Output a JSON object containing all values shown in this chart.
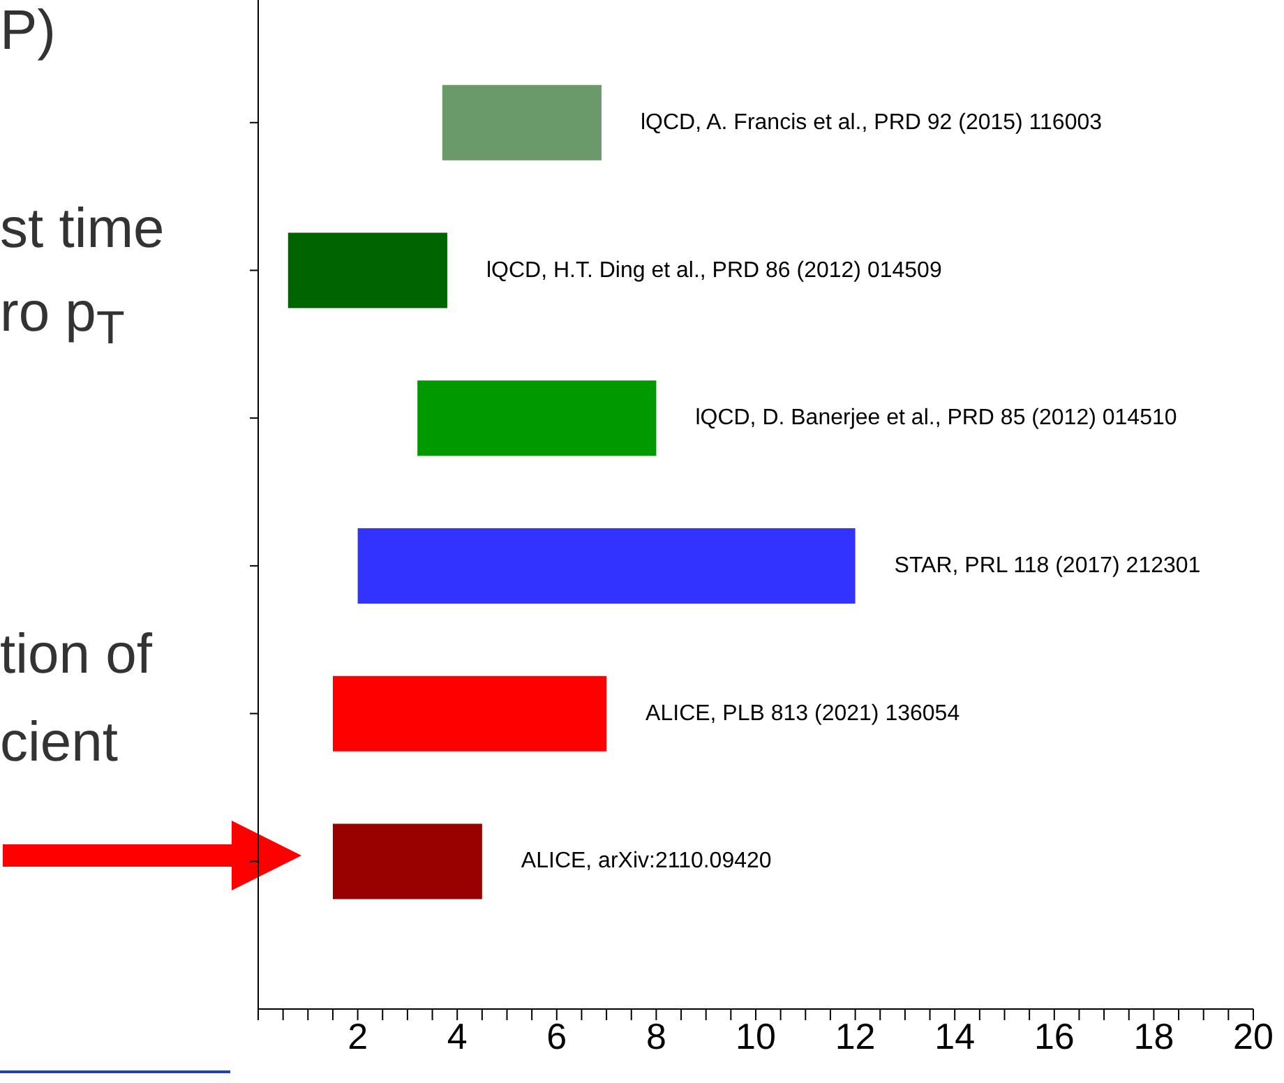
{
  "chart_data": {
    "type": "bar",
    "orientation": "horizontal",
    "categories": [
      "lQCD, A. Francis et al., PRD 92 (2015) 116003",
      "lQCD, H.T. Ding et al., PRD 86 (2012) 014509",
      "lQCD, D. Banerjee et al., PRD 85 (2012) 014510",
      "STAR, PRL 118 (2017) 212301",
      "ALICE, PLB 813 (2021) 136054",
      "ALICE, arXiv:2110.09420"
    ],
    "base": [
      3.7,
      0.6,
      3.2,
      2,
      1.5,
      1.5
    ],
    "values": [
      3.2,
      3.2,
      4.8,
      10,
      5.5,
      3
    ],
    "colors": [
      "#6a9a6a",
      "#006400",
      "#009900",
      "#3333ff",
      "#ff0000",
      "#990000"
    ],
    "xlim": [
      0,
      20
    ],
    "xticks": [
      {
        "value": 0,
        "label": null
      },
      {
        "value": 0.5,
        "label": null
      },
      {
        "value": 1,
        "label": null
      },
      {
        "value": 1.5,
        "label": null
      },
      2,
      {
        "value": 2.5,
        "label": null
      },
      {
        "value": 3,
        "label": null
      },
      {
        "value": 3.5,
        "label": null
      },
      4,
      {
        "value": 4.5,
        "label": null
      },
      {
        "value": 5,
        "label": null
      },
      {
        "value": 5.5,
        "label": null
      },
      6,
      {
        "value": 6.5,
        "label": null
      },
      {
        "value": 7,
        "label": null
      },
      {
        "value": 7.5,
        "label": null
      },
      8,
      {
        "value": 8.5,
        "label": null
      },
      {
        "value": 9,
        "label": null
      },
      {
        "value": 9.5,
        "label": null
      },
      10,
      {
        "value": 10.5,
        "label": null
      },
      {
        "value": 11,
        "label": null
      },
      {
        "value": 11.5,
        "label": null
      },
      12,
      {
        "value": 12.5,
        "label": null
      },
      {
        "value": 13,
        "label": null
      },
      {
        "value": 13.5,
        "label": null
      },
      14,
      {
        "value": 14.5,
        "label": null
      },
      {
        "value": 15,
        "label": null
      },
      {
        "value": 15.5,
        "label": null
      },
      16,
      {
        "value": 16.5,
        "label": null
      },
      {
        "value": 17,
        "label": null
      },
      {
        "value": 17.5,
        "label": null
      },
      18,
      {
        "value": 18.5,
        "label": null
      },
      {
        "value": 19,
        "label": null
      },
      {
        "value": 19.5,
        "label": null
      },
      20
    ],
    "tick_labels": "x",
    "annotations": [
      "P)",
      "st time",
      "ro p$_{T}$",
      "tion of",
      "cient"
    ]
  }
}
